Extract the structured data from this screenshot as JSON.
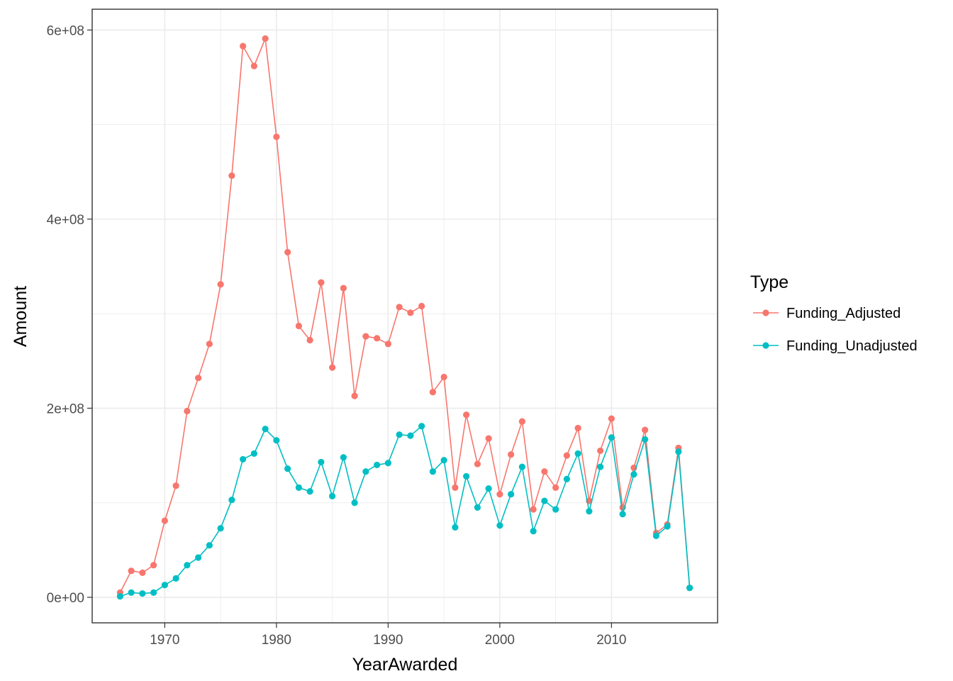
{
  "chart_data": {
    "type": "line",
    "title": "",
    "xlabel": "YearAwarded",
    "ylabel": "Amount",
    "xlim": [
      1963.5,
      1919.5
    ],
    "ylim": [
      -27000000,
      622000000
    ],
    "x_ticks": [
      1970,
      1980,
      1990,
      2000,
      2010
    ],
    "x_tick_labels": [
      "1970",
      "1980",
      "1990",
      "2000",
      "2010"
    ],
    "y_ticks": [
      0,
      200000000,
      400000000,
      600000000
    ],
    "y_tick_labels": [
      "0e+00",
      "2e+08",
      "4e+08",
      "6e+08"
    ],
    "grid": true,
    "legend": {
      "title": "Type",
      "position": "right"
    },
    "x": [
      1966,
      1967,
      1968,
      1969,
      1970,
      1971,
      1972,
      1973,
      1974,
      1975,
      1976,
      1977,
      1978,
      1979,
      1980,
      1981,
      1982,
      1983,
      1984,
      1985,
      1986,
      1987,
      1988,
      1989,
      1990,
      1991,
      1992,
      1993,
      1994,
      1995,
      1996,
      1997,
      1998,
      1999,
      2000,
      2001,
      2002,
      2003,
      2004,
      2005,
      2006,
      2007,
      2008,
      2009,
      2010,
      2011,
      2012,
      2013,
      2014,
      2015,
      2016,
      2017
    ],
    "series": [
      {
        "name": "Funding_Adjusted",
        "color": "#F8766D",
        "values": [
          5000000,
          28000000,
          26000000,
          34000000,
          81000000,
          118000000,
          197000000,
          232000000,
          268000000,
          331000000,
          446000000,
          583000000,
          562000000,
          591000000,
          487000000,
          365000000,
          287000000,
          272000000,
          333000000,
          243000000,
          327000000,
          213000000,
          276000000,
          274000000,
          268000000,
          307000000,
          301000000,
          308000000,
          217000000,
          233000000,
          116000000,
          193000000,
          141000000,
          168000000,
          109000000,
          151000000,
          186000000,
          93000000,
          133000000,
          116000000,
          150000000,
          179000000,
          102000000,
          155000000,
          189000000,
          95000000,
          137000000,
          177000000,
          68000000,
          77000000,
          158000000,
          10000000
        ]
      },
      {
        "name": "Funding_Unadjusted",
        "color": "#00BFC4",
        "values": [
          1000000,
          5000000,
          4000000,
          5000000,
          13000000,
          20000000,
          34000000,
          42000000,
          55000000,
          73000000,
          103000000,
          146000000,
          152000000,
          178000000,
          166000000,
          136000000,
          116000000,
          112000000,
          143000000,
          107000000,
          148000000,
          100000000,
          133000000,
          140000000,
          142000000,
          172000000,
          171000000,
          181000000,
          133000000,
          145000000,
          74000000,
          128000000,
          95000000,
          115000000,
          76000000,
          109000000,
          138000000,
          70000000,
          102000000,
          93000000,
          125000000,
          152000000,
          91000000,
          138000000,
          169000000,
          88000000,
          130000000,
          167000000,
          65000000,
          75000000,
          154000000,
          10000000
        ]
      }
    ]
  }
}
